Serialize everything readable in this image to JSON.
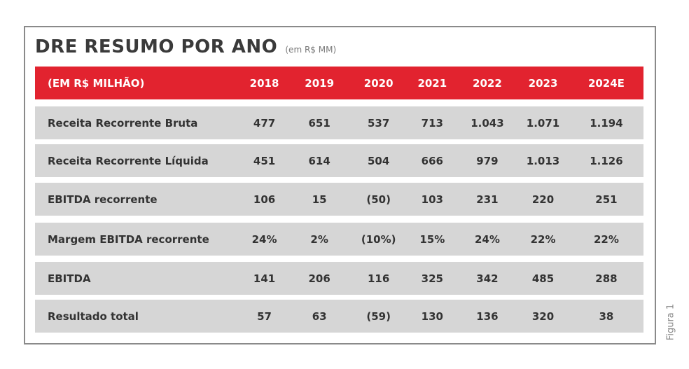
{
  "title": "DRE RESUMO POR ANO",
  "subtitle": "(em R$ MM)",
  "figure_label": "Figura 1",
  "table": {
    "header": [
      "(EM R$ MILHÃO)",
      "2018",
      "2019",
      "2020",
      "2021",
      "2022",
      "2023",
      "2024E"
    ],
    "rows": [
      {
        "label": "Receita Recorrente Bruta",
        "values": [
          "477",
          "651",
          "537",
          "713",
          "1.043",
          "1.071",
          "1.194"
        ]
      },
      {
        "label": "Receita Recorrente Líquida",
        "values": [
          "451",
          "614",
          "504",
          "666",
          "979",
          "1.013",
          "1.126"
        ]
      },
      {
        "label": "EBITDA recorrente",
        "values": [
          "106",
          "15",
          "(50)",
          "103",
          "231",
          "220",
          "251"
        ]
      },
      {
        "label": "Margem EBITDA recorrente",
        "values": [
          "24%",
          "2%",
          "(10%)",
          "15%",
          "24%",
          "22%",
          "22%"
        ]
      },
      {
        "label": "EBITDA",
        "values": [
          "141",
          "206",
          "116",
          "325",
          "342",
          "485",
          "288"
        ]
      },
      {
        "label": "Resultado total",
        "values": [
          "57",
          "63",
          "(59)",
          "130",
          "136",
          "320",
          "38"
        ]
      }
    ]
  },
  "colors": {
    "header_bg": "#e2232f",
    "row_bg": "#d6d6d6",
    "border": "#8a8a8a"
  }
}
